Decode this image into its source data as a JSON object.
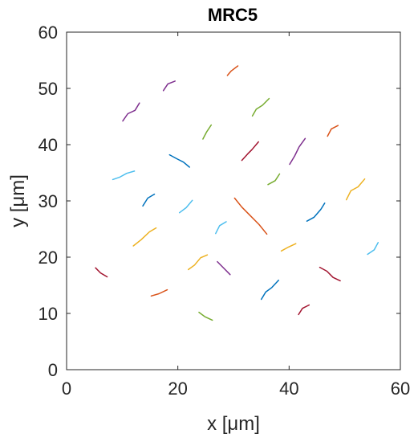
{
  "chart_data": {
    "type": "scatter",
    "title": "MRC5",
    "xlabel": "x [μm]",
    "ylabel": "y [μm]",
    "xlim": [
      0,
      60
    ],
    "ylim": [
      0,
      60
    ],
    "xticks": [
      0,
      20,
      40,
      60
    ],
    "yticks": [
      0,
      10,
      20,
      30,
      40,
      50,
      60
    ],
    "xtick_labels": [
      "0",
      "20",
      "40",
      "60"
    ],
    "ytick_labels": [
      "0",
      "10",
      "20",
      "30",
      "40",
      "50",
      "60"
    ],
    "grid": false,
    "legend": "none",
    "colors": [
      "#0072BD",
      "#D95319",
      "#EDB120",
      "#7E2F8E",
      "#77AC30",
      "#4DBEEE",
      "#A2142F"
    ],
    "series": [
      {
        "color": "#0072BD",
        "x": [
          18.5,
          19.8,
          21.0,
          22.1
        ],
        "y": [
          38.2,
          37.5,
          36.9,
          36.0
        ]
      },
      {
        "color": "#D95319",
        "x": [
          30.2,
          31.5,
          33.0,
          34.6,
          36.0
        ],
        "y": [
          30.5,
          28.9,
          27.4,
          25.8,
          24.1
        ]
      },
      {
        "color": "#EDB120",
        "x": [
          12.0,
          13.4,
          14.9,
          16.1
        ],
        "y": [
          22.0,
          23.1,
          24.5,
          25.2
        ]
      },
      {
        "color": "#7E2F8E",
        "x": [
          40.1,
          41.0,
          41.8,
          42.9
        ],
        "y": [
          36.5,
          38.0,
          39.6,
          41.1
        ]
      },
      {
        "color": "#77AC30",
        "x": [
          24.5,
          25.2,
          26.0
        ],
        "y": [
          41.0,
          42.3,
          43.5
        ]
      },
      {
        "color": "#4DBEEE",
        "x": [
          8.3,
          9.5,
          10.8,
          12.2
        ],
        "y": [
          33.8,
          34.2,
          34.9,
          35.3
        ]
      },
      {
        "color": "#A2142F",
        "x": [
          45.5,
          46.8,
          47.9,
          49.2
        ],
        "y": [
          18.2,
          17.5,
          16.4,
          15.8
        ]
      },
      {
        "color": "#0072BD",
        "x": [
          35.0,
          35.8,
          36.9,
          38.1
        ],
        "y": [
          12.5,
          13.8,
          14.6,
          15.9
        ]
      },
      {
        "color": "#D95319",
        "x": [
          15.2,
          16.6,
          18.1
        ],
        "y": [
          13.1,
          13.5,
          14.2
        ]
      },
      {
        "color": "#EDB120",
        "x": [
          50.3,
          51.1,
          52.4,
          53.6
        ],
        "y": [
          30.2,
          31.8,
          32.5,
          33.9
        ]
      },
      {
        "color": "#7E2F8E",
        "x": [
          27.1,
          28.3,
          29.4
        ],
        "y": [
          19.2,
          18.0,
          16.9
        ]
      },
      {
        "color": "#77AC30",
        "x": [
          33.4,
          34.1,
          35.2,
          36.4
        ],
        "y": [
          45.1,
          46.3,
          47.0,
          48.2
        ]
      },
      {
        "color": "#4DBEEE",
        "x": [
          20.3,
          21.5,
          22.6
        ],
        "y": [
          27.9,
          28.8,
          30.1
        ]
      },
      {
        "color": "#A2142F",
        "x": [
          5.2,
          6.1,
          7.3
        ],
        "y": [
          18.1,
          17.2,
          16.5
        ]
      },
      {
        "color": "#0072BD",
        "x": [
          43.2,
          44.5,
          45.7,
          46.4
        ],
        "y": [
          26.4,
          27.1,
          28.5,
          29.6
        ]
      },
      {
        "color": "#D95319",
        "x": [
          28.9,
          29.6,
          30.8
        ],
        "y": [
          52.3,
          53.1,
          54.0
        ]
      },
      {
        "color": "#EDB120",
        "x": [
          38.6,
          39.9,
          41.2
        ],
        "y": [
          21.1,
          21.8,
          22.4
        ]
      },
      {
        "color": "#7E2F8E",
        "x": [
          10.1,
          11.0,
          12.3,
          13.1
        ],
        "y": [
          44.2,
          45.5,
          46.1,
          47.4
        ]
      },
      {
        "color": "#77AC30",
        "x": [
          23.8,
          24.9,
          26.2
        ],
        "y": [
          10.2,
          9.4,
          8.8
        ]
      },
      {
        "color": "#4DBEEE",
        "x": [
          54.1,
          55.3,
          56.0
        ],
        "y": [
          20.5,
          21.3,
          22.6
        ]
      },
      {
        "color": "#A2142F",
        "x": [
          31.5,
          32.6,
          33.3,
          34.5
        ],
        "y": [
          37.2,
          38.4,
          39.1,
          40.5
        ]
      },
      {
        "color": "#0072BD",
        "x": [
          13.7,
          14.6,
          15.8
        ],
        "y": [
          29.1,
          30.5,
          31.2
        ]
      },
      {
        "color": "#D95319",
        "x": [
          46.9,
          47.6,
          48.8
        ],
        "y": [
          41.5,
          42.8,
          43.4
        ]
      },
      {
        "color": "#EDB120",
        "x": [
          21.9,
          23.0,
          24.1,
          25.3
        ],
        "y": [
          17.8,
          18.6,
          19.9,
          20.4
        ]
      },
      {
        "color": "#77AC30",
        "x": [
          36.2,
          37.5,
          38.3
        ],
        "y": [
          32.9,
          33.6,
          34.8
        ]
      },
      {
        "color": "#4DBEEE",
        "x": [
          26.8,
          27.5,
          28.7
        ],
        "y": [
          24.2,
          25.6,
          26.3
        ]
      },
      {
        "color": "#7E2F8E",
        "x": [
          17.4,
          18.2,
          19.5
        ],
        "y": [
          49.6,
          50.8,
          51.3
        ]
      },
      {
        "color": "#A2142F",
        "x": [
          41.7,
          42.4,
          43.6
        ],
        "y": [
          9.8,
          10.9,
          11.5
        ]
      }
    ]
  }
}
